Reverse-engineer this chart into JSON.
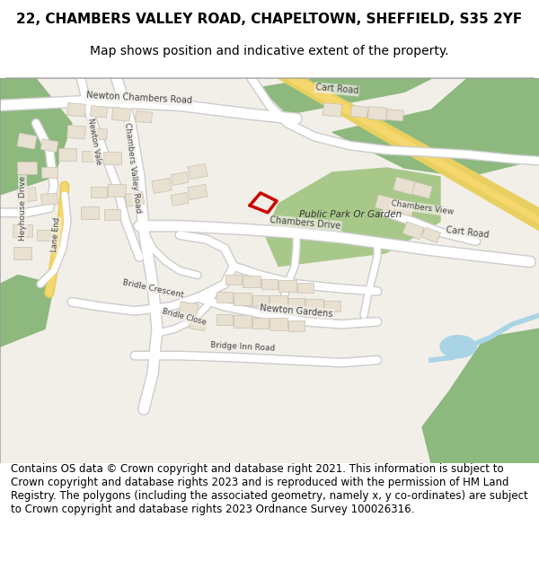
{
  "title_line1": "22, CHAMBERS VALLEY ROAD, CHAPELTOWN, SHEFFIELD, S35 2YF",
  "title_line2": "Map shows position and indicative extent of the property.",
  "footer_text": "Contains OS data © Crown copyright and database right 2021. This information is subject to Crown copyright and database rights 2023 and is reproduced with the permission of HM Land Registry. The polygons (including the associated geometry, namely x, y co-ordinates) are subject to Crown copyright and database rights 2023 Ordnance Survey 100026316.",
  "title_fontsize": 11,
  "subtitle_fontsize": 10,
  "footer_fontsize": 8.5,
  "map_bg": "#f2efe9",
  "road_color": "#ffffff",
  "road_outline": "#cccccc",
  "green_area": "#8db87e",
  "building_color": "#e8e0d0",
  "building_outline": "#c8c0b0",
  "yellow_road": "#f5d76e",
  "blue_water": "#a8d4e6",
  "plot_outline_color": "#cc0000",
  "fig_width": 6.0,
  "fig_height": 6.25
}
